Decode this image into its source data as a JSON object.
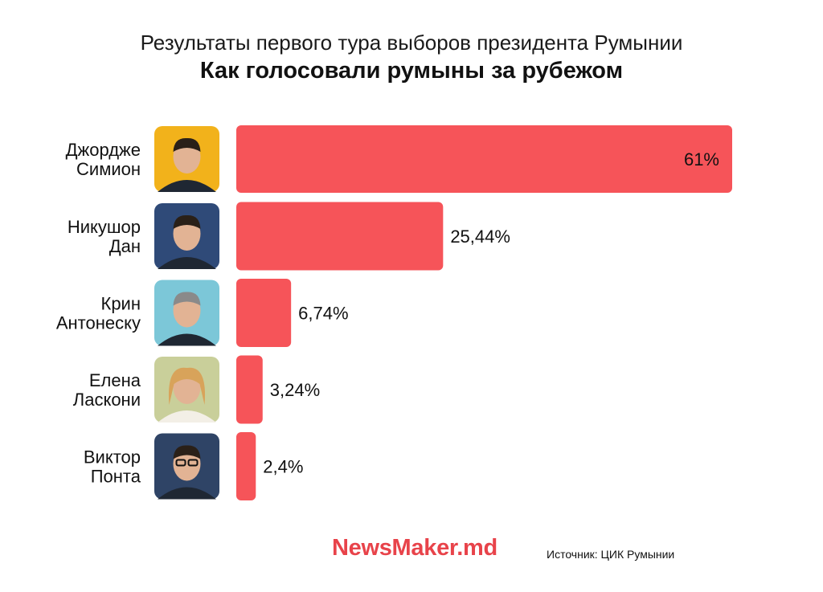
{
  "header": {
    "title": "Результаты первого тура выборов президента Румынии",
    "subtitle": "Как голосовали румыны за рубежом"
  },
  "footer": {
    "logo": "NewsMaker.md",
    "source": "Источник: ЦИК Румынии"
  },
  "colors": {
    "bar": "#f65459",
    "logo": "#e8434a"
  },
  "chart_data": {
    "type": "bar",
    "orientation": "horizontal",
    "title": "Результаты первого тура выборов президента Румынии",
    "subtitle": "Как голосовали румыны за рубежом",
    "categories": [
      [
        "Джордже",
        "Симион"
      ],
      [
        "Никушор",
        "Дан"
      ],
      [
        "Крин",
        "Антонеску"
      ],
      [
        "Елена",
        "Ласкони"
      ],
      [
        "Виктор",
        "Понта"
      ]
    ],
    "values": [
      61,
      25.44,
      6.74,
      3.24,
      2.4
    ],
    "value_labels": [
      "61%",
      "25,44%",
      "6,74%",
      "3,24%",
      "2,4%"
    ],
    "photo_backgrounds": [
      "#f2b21b",
      "#2f4a78",
      "#7cc7d8",
      "#c9cf9a",
      "#2f4466"
    ],
    "grid": false,
    "legend": "none"
  }
}
